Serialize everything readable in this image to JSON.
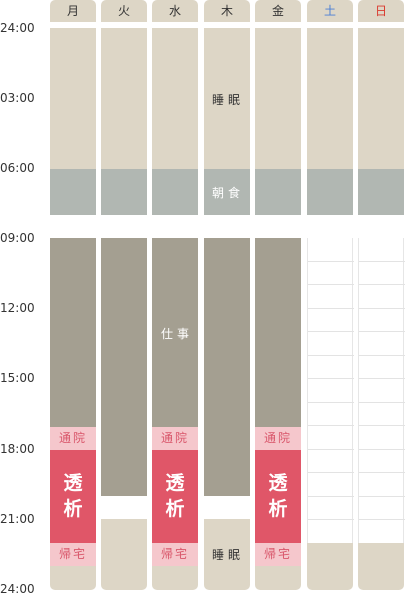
{
  "days": [
    {
      "label": "月",
      "color": "#333333"
    },
    {
      "label": "火",
      "color": "#333333"
    },
    {
      "label": "水",
      "color": "#333333"
    },
    {
      "label": "木",
      "color": "#333333"
    },
    {
      "label": "金",
      "color": "#333333"
    },
    {
      "label": "土",
      "color": "#4a7fd6"
    },
    {
      "label": "日",
      "color": "#d93a2f"
    }
  ],
  "times": [
    "24:00",
    "03:00",
    "06:00",
    "09:00",
    "12:00",
    "15:00",
    "18:00",
    "21:00",
    "24:00"
  ],
  "labels": {
    "sleep": "睡眠",
    "breakfast": "朝食",
    "work": "仕事",
    "tsuin": "通院",
    "dialysis_line1": "透",
    "dialysis_line2": "析",
    "kitaku": "帰宅",
    "sleep_night": "睡眠"
  },
  "colors": {
    "sleep": "#ddd6c6",
    "breakfast": "#b1b7b2",
    "work": "#a49f91",
    "clinic": "#f5c7cc",
    "dialysis": "#e05668"
  }
}
